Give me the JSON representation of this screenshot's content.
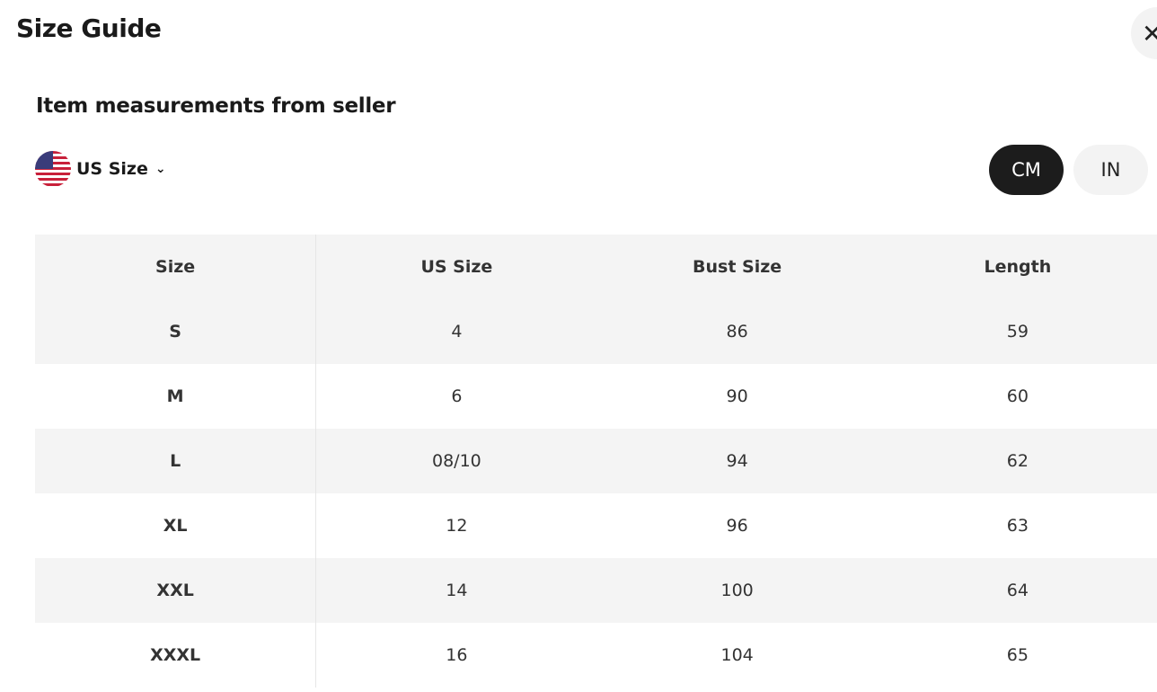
{
  "header": {
    "title": "Size Guide",
    "close_icon": "close-x-icon"
  },
  "section": {
    "title": "Item measurements from seller"
  },
  "size_selector": {
    "label": "US Size",
    "icon": "us-flag-icon"
  },
  "units": {
    "options": [
      "CM",
      "IN"
    ],
    "selected": "CM"
  },
  "table": {
    "columns": [
      "Size",
      "US Size",
      "Bust Size",
      "Length"
    ],
    "rows": [
      [
        "S",
        "4",
        "86",
        "59"
      ],
      [
        "M",
        "6",
        "90",
        "60"
      ],
      [
        "L",
        "08/10",
        "94",
        "62"
      ],
      [
        "XL",
        "12",
        "96",
        "63"
      ],
      [
        "XXL",
        "14",
        "100",
        "64"
      ],
      [
        "XXXL",
        "16",
        "104",
        "65"
      ]
    ]
  }
}
